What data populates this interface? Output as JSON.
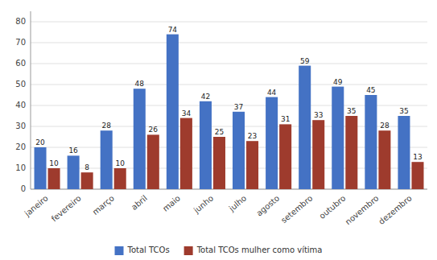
{
  "chart_data": {
    "type": "bar",
    "categories": [
      "janeiro",
      "fevereiro",
      "março",
      "abril",
      "maio",
      "junho",
      "julho",
      "agosto",
      "setembro",
      "outubro",
      "novembro",
      "dezembro"
    ],
    "series": [
      {
        "name": "Total TCOs",
        "color": "#4472C4",
        "values": [
          20,
          16,
          28,
          48,
          74,
          42,
          37,
          44,
          59,
          49,
          45,
          35
        ]
      },
      {
        "name": "Total TCOs mulher como vítima",
        "color": "#9E3B2D",
        "values": [
          10,
          8,
          10,
          26,
          34,
          25,
          23,
          31,
          33,
          35,
          28,
          13
        ]
      }
    ],
    "ylim": [
      0,
      85
    ],
    "yticks": [
      0,
      10,
      20,
      30,
      40,
      50,
      60,
      70,
      80
    ],
    "grid": true,
    "data_labels": true,
    "legend": "bottom"
  }
}
